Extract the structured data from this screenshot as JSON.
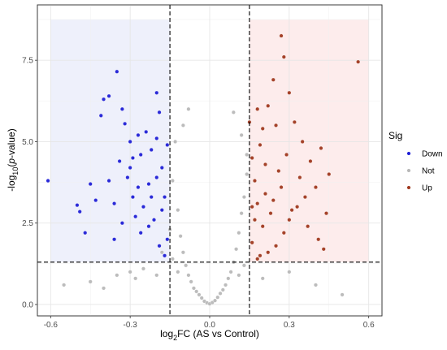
{
  "chart_data": {
    "type": "scatter",
    "subtype": "volcano",
    "xlabel_parts": [
      "log",
      "2",
      "FC (AS vs Control)"
    ],
    "ylabel_parts": [
      "-log",
      "10",
      "(",
      "p",
      "-value)"
    ],
    "xlim": [
      -0.65,
      0.65
    ],
    "ylim": [
      -0.35,
      9.2
    ],
    "xticks": [
      -0.6,
      -0.3,
      0.0,
      0.3,
      0.6
    ],
    "xtick_labels": [
      "-0.6",
      "-0.3",
      "0.0",
      "0.3",
      "0.6"
    ],
    "yticks": [
      0.0,
      2.5,
      5.0,
      7.5
    ],
    "ytick_labels": [
      "0.0",
      "2.5",
      "5.0",
      "7.5"
    ],
    "grid": true,
    "fc_threshold_lines": [
      -0.15,
      0.15
    ],
    "p_threshold_line": 1.3,
    "shaded_regions": [
      {
        "name": "Down",
        "x": [
          -0.6,
          -0.15
        ],
        "y": [
          1.3,
          8.75
        ],
        "color": "#eceefb"
      },
      {
        "name": "Up",
        "x": [
          0.15,
          0.6
        ],
        "y": [
          1.3,
          8.75
        ],
        "color": "#fdeaea"
      }
    ],
    "legend": {
      "title": "Sig",
      "position": "right",
      "entries": [
        {
          "label": "Down",
          "color": "#1f1fd6"
        },
        {
          "label": "Not",
          "color": "#b8b8b8"
        },
        {
          "label": "Up",
          "color": "#a0391f"
        }
      ]
    },
    "series": [
      {
        "name": "Down",
        "color": "#1f1fd6",
        "points": [
          [
            -0.61,
            3.8
          ],
          [
            -0.49,
            2.85
          ],
          [
            -0.47,
            2.2
          ],
          [
            -0.5,
            3.05
          ],
          [
            -0.45,
            3.7
          ],
          [
            -0.38,
            6.4
          ],
          [
            -0.4,
            6.3
          ],
          [
            -0.41,
            5.8
          ],
          [
            -0.35,
            7.15
          ],
          [
            -0.33,
            6.0
          ],
          [
            -0.32,
            5.55
          ],
          [
            -0.3,
            5.0
          ],
          [
            -0.29,
            4.5
          ],
          [
            -0.27,
            3.6
          ],
          [
            -0.25,
            3.0
          ],
          [
            -0.23,
            2.4
          ],
          [
            -0.22,
            4.75
          ],
          [
            -0.2,
            5.1
          ],
          [
            -0.19,
            5.9
          ],
          [
            -0.2,
            6.5
          ],
          [
            -0.18,
            4.2
          ],
          [
            -0.17,
            3.3
          ],
          [
            -0.16,
            2.0
          ],
          [
            -0.38,
            3.8
          ],
          [
            -0.36,
            3.1
          ],
          [
            -0.34,
            4.4
          ],
          [
            -0.31,
            3.9
          ],
          [
            -0.28,
            2.7
          ],
          [
            -0.26,
            2.2
          ],
          [
            -0.24,
            5.3
          ],
          [
            -0.22,
            3.3
          ],
          [
            -0.21,
            2.6
          ],
          [
            -0.19,
            1.8
          ],
          [
            -0.17,
            1.5
          ],
          [
            -0.16,
            4.9
          ],
          [
            -0.26,
            4.6
          ],
          [
            -0.29,
            3.3
          ],
          [
            -0.33,
            2.5
          ],
          [
            -0.36,
            2.0
          ],
          [
            -0.2,
            3.9
          ],
          [
            -0.18,
            2.9
          ],
          [
            -0.23,
            3.7
          ],
          [
            -0.27,
            5.2
          ],
          [
            -0.3,
            4.2
          ],
          [
            -0.43,
            3.2
          ]
        ]
      },
      {
        "name": "Not",
        "color": "#b8b8b8",
        "points": [
          [
            -0.55,
            0.6
          ],
          [
            -0.4,
            0.5
          ],
          [
            -0.3,
            1.0
          ],
          [
            -0.28,
            0.8
          ],
          [
            -0.25,
            1.1
          ],
          [
            -0.2,
            0.9
          ],
          [
            -0.18,
            1.6
          ],
          [
            -0.15,
            2.3
          ],
          [
            -0.14,
            3.8
          ],
          [
            -0.12,
            2.9
          ],
          [
            -0.11,
            2.1
          ],
          [
            -0.1,
            1.6
          ],
          [
            -0.09,
            1.2
          ],
          [
            -0.08,
            0.9
          ],
          [
            -0.07,
            0.7
          ],
          [
            -0.06,
            0.5
          ],
          [
            -0.05,
            0.4
          ],
          [
            -0.04,
            0.3
          ],
          [
            -0.03,
            0.2
          ],
          [
            -0.02,
            0.1
          ],
          [
            -0.01,
            0.05
          ],
          [
            0.0,
            0.02
          ],
          [
            0.01,
            0.06
          ],
          [
            0.02,
            0.12
          ],
          [
            0.03,
            0.22
          ],
          [
            0.04,
            0.34
          ],
          [
            0.05,
            0.45
          ],
          [
            0.06,
            0.6
          ],
          [
            0.07,
            0.8
          ],
          [
            0.08,
            1.0
          ],
          [
            0.09,
            1.3
          ],
          [
            0.1,
            1.7
          ],
          [
            0.11,
            2.2
          ],
          [
            0.12,
            2.8
          ],
          [
            0.13,
            3.3
          ],
          [
            0.14,
            4.0
          ],
          [
            -0.13,
            5.0
          ],
          [
            -0.1,
            5.5
          ],
          [
            -0.08,
            6.0
          ],
          [
            0.09,
            5.9
          ],
          [
            0.12,
            5.2
          ],
          [
            0.14,
            4.6
          ],
          [
            -0.14,
            1.4
          ],
          [
            -0.12,
            1.0
          ],
          [
            0.13,
            1.2
          ],
          [
            0.11,
            0.9
          ],
          [
            0.2,
            0.8
          ],
          [
            0.3,
            1.0
          ],
          [
            0.4,
            0.6
          ],
          [
            0.5,
            0.3
          ],
          [
            -0.35,
            0.9
          ],
          [
            -0.45,
            0.7
          ]
        ]
      },
      {
        "name": "Up",
        "color": "#a0391f",
        "points": [
          [
            0.56,
            7.45
          ],
          [
            0.27,
            8.25
          ],
          [
            0.28,
            7.6
          ],
          [
            0.24,
            6.9
          ],
          [
            0.3,
            6.5
          ],
          [
            0.22,
            6.1
          ],
          [
            0.18,
            6.0
          ],
          [
            0.2,
            5.4
          ],
          [
            0.25,
            5.5
          ],
          [
            0.32,
            5.6
          ],
          [
            0.35,
            5.0
          ],
          [
            0.38,
            4.4
          ],
          [
            0.42,
            4.8
          ],
          [
            0.45,
            4.0
          ],
          [
            0.4,
            3.6
          ],
          [
            0.36,
            3.3
          ],
          [
            0.33,
            3.0
          ],
          [
            0.3,
            2.6
          ],
          [
            0.28,
            2.2
          ],
          [
            0.25,
            1.8
          ],
          [
            0.22,
            1.6
          ],
          [
            0.2,
            2.4
          ],
          [
            0.18,
            3.1
          ],
          [
            0.17,
            3.8
          ],
          [
            0.16,
            4.5
          ],
          [
            0.19,
            4.9
          ],
          [
            0.21,
            3.4
          ],
          [
            0.23,
            2.8
          ],
          [
            0.26,
            4.1
          ],
          [
            0.29,
            4.6
          ],
          [
            0.34,
            3.9
          ],
          [
            0.37,
            2.4
          ],
          [
            0.41,
            2.0
          ],
          [
            0.43,
            1.7
          ],
          [
            0.16,
            1.9
          ],
          [
            0.17,
            2.6
          ],
          [
            0.19,
            1.5
          ],
          [
            0.21,
            4.3
          ],
          [
            0.24,
            3.2
          ],
          [
            0.27,
            3.6
          ],
          [
            0.31,
            2.9
          ],
          [
            0.44,
            2.8
          ],
          [
            0.15,
            5.6
          ],
          [
            0.16,
            3.0
          ],
          [
            0.18,
            1.4
          ]
        ]
      }
    ]
  }
}
